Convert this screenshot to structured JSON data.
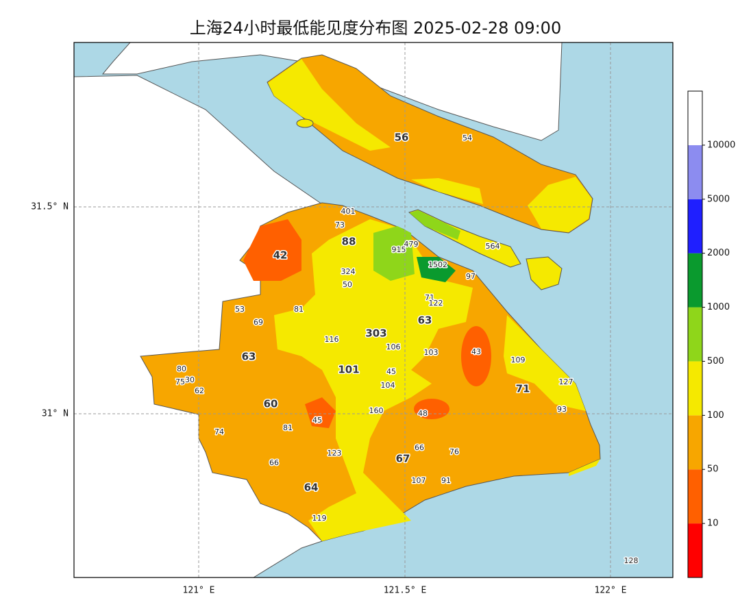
{
  "title": "上海24小时最低能见度分布图 2025-02-28 09:00",
  "lon_labels": [
    "121° E",
    "121.5° E",
    "122° E"
  ],
  "lat_labels": [
    "31.5° N",
    "31° N"
  ],
  "colorbar": {
    "labels": [
      10,
      50,
      100,
      500,
      1000,
      2000,
      5000,
      10000
    ],
    "colors": [
      "#ff0000",
      "#ff6000",
      "#f7a600",
      "#f5e900",
      "#8fd61a",
      "#0a9a2e",
      "#1f1fff",
      "#8c8cf0",
      "#ffffff"
    ]
  },
  "stations": {
    "major": [
      56,
      88,
      42,
      303,
      63,
      63,
      101,
      71,
      60,
      67,
      64
    ],
    "minor": [
      54,
      401,
      73,
      479,
      915,
      564,
      1502,
      97,
      324,
      50,
      71,
      122,
      81,
      53,
      69,
      116,
      106,
      103,
      43,
      109,
      80,
      75,
      30,
      62,
      45,
      104,
      127,
      48,
      93,
      160,
      45,
      81,
      74,
      66,
      76,
      123,
      66,
      107,
      91,
      119,
      128
    ]
  }
}
